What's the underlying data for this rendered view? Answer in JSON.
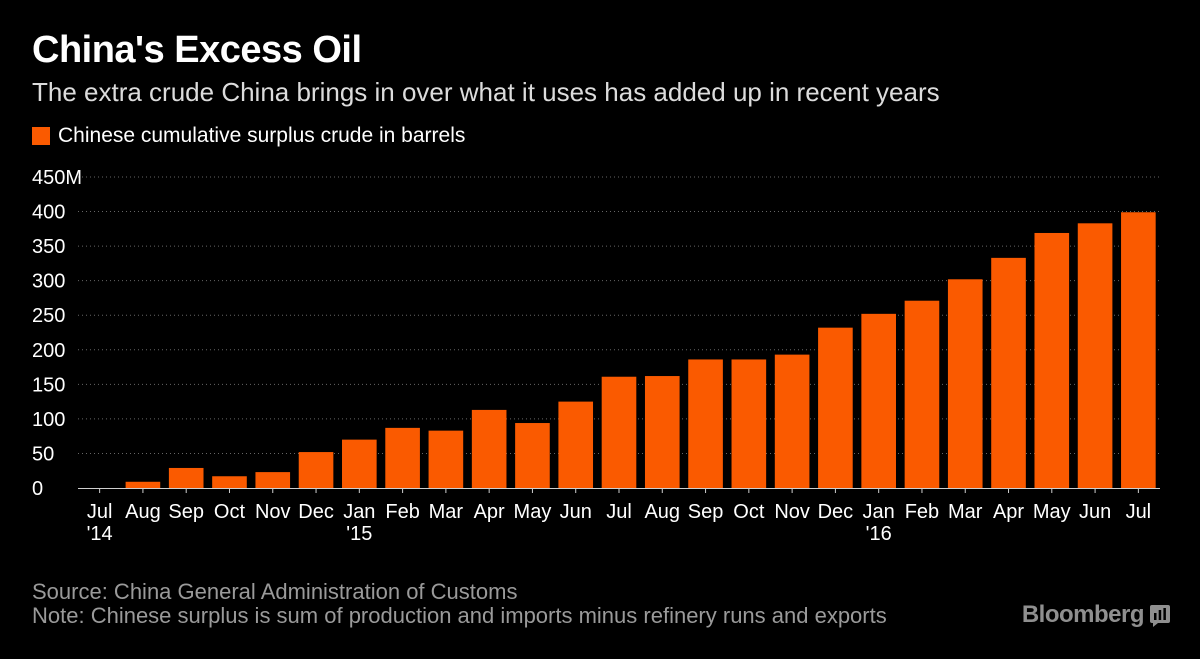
{
  "header": {
    "title": "China's Excess Oil",
    "subtitle": "The extra crude China brings in over what it uses has added up in recent years"
  },
  "colors": {
    "background": "#000000",
    "bar": "#fa5a00",
    "grid": "#666666",
    "text": "#ffffff",
    "muted": "#9a9a9a"
  },
  "chart_data": {
    "type": "bar",
    "title": "China's Excess Oil",
    "subtitle": "The extra crude China brings in over what it uses has added up in recent years",
    "categories": [
      "Jul '14",
      "Aug",
      "Sep",
      "Oct",
      "Nov",
      "Dec",
      "Jan '15",
      "Feb",
      "Mar",
      "Apr",
      "May",
      "Jun",
      "Jul",
      "Aug",
      "Sep",
      "Oct",
      "Nov",
      "Dec",
      "Jan '16",
      "Feb",
      "Mar",
      "Apr",
      "May",
      "Jun",
      "Jul"
    ],
    "x_tick_labels": [
      {
        "month": "Jul",
        "year": "'14"
      },
      {
        "month": "Aug",
        "year": ""
      },
      {
        "month": "Sep",
        "year": ""
      },
      {
        "month": "Oct",
        "year": ""
      },
      {
        "month": "Nov",
        "year": ""
      },
      {
        "month": "Dec",
        "year": ""
      },
      {
        "month": "Jan",
        "year": "'15"
      },
      {
        "month": "Feb",
        "year": ""
      },
      {
        "month": "Mar",
        "year": ""
      },
      {
        "month": "Apr",
        "year": ""
      },
      {
        "month": "May",
        "year": ""
      },
      {
        "month": "Jun",
        "year": ""
      },
      {
        "month": "Jul",
        "year": ""
      },
      {
        "month": "Aug",
        "year": ""
      },
      {
        "month": "Sep",
        "year": ""
      },
      {
        "month": "Oct",
        "year": ""
      },
      {
        "month": "Nov",
        "year": ""
      },
      {
        "month": "Dec",
        "year": ""
      },
      {
        "month": "Jan",
        "year": "'16"
      },
      {
        "month": "Feb",
        "year": ""
      },
      {
        "month": "Mar",
        "year": ""
      },
      {
        "month": "Apr",
        "year": ""
      },
      {
        "month": "May",
        "year": ""
      },
      {
        "month": "Jun",
        "year": ""
      },
      {
        "month": "Jul",
        "year": ""
      }
    ],
    "series": [
      {
        "name": "Chinese cumulative surplus crude in barrels",
        "values": [
          0,
          9,
          29,
          17,
          23,
          52,
          70,
          87,
          83,
          113,
          94,
          125,
          161,
          162,
          186,
          186,
          193,
          232,
          252,
          271,
          302,
          333,
          369,
          383,
          399
        ]
      }
    ],
    "y_ticks": [
      0,
      50,
      100,
      150,
      200,
      250,
      300,
      350,
      400,
      450
    ],
    "y_tick_labels": [
      "0",
      "50",
      "100",
      "150",
      "200",
      "250",
      "300",
      "350",
      "400",
      "450M"
    ],
    "ylim": [
      0,
      450
    ],
    "grid": true,
    "legend": "top-left",
    "xlabel": "",
    "ylabel": ""
  },
  "footer": {
    "source": "Source: China General Administration of Customs",
    "note": "Note: Chinese surplus is sum of production and imports minus refinery runs and exports",
    "brand": "Bloomberg",
    "brand_icon": "bloomberg-terminal-icon"
  }
}
